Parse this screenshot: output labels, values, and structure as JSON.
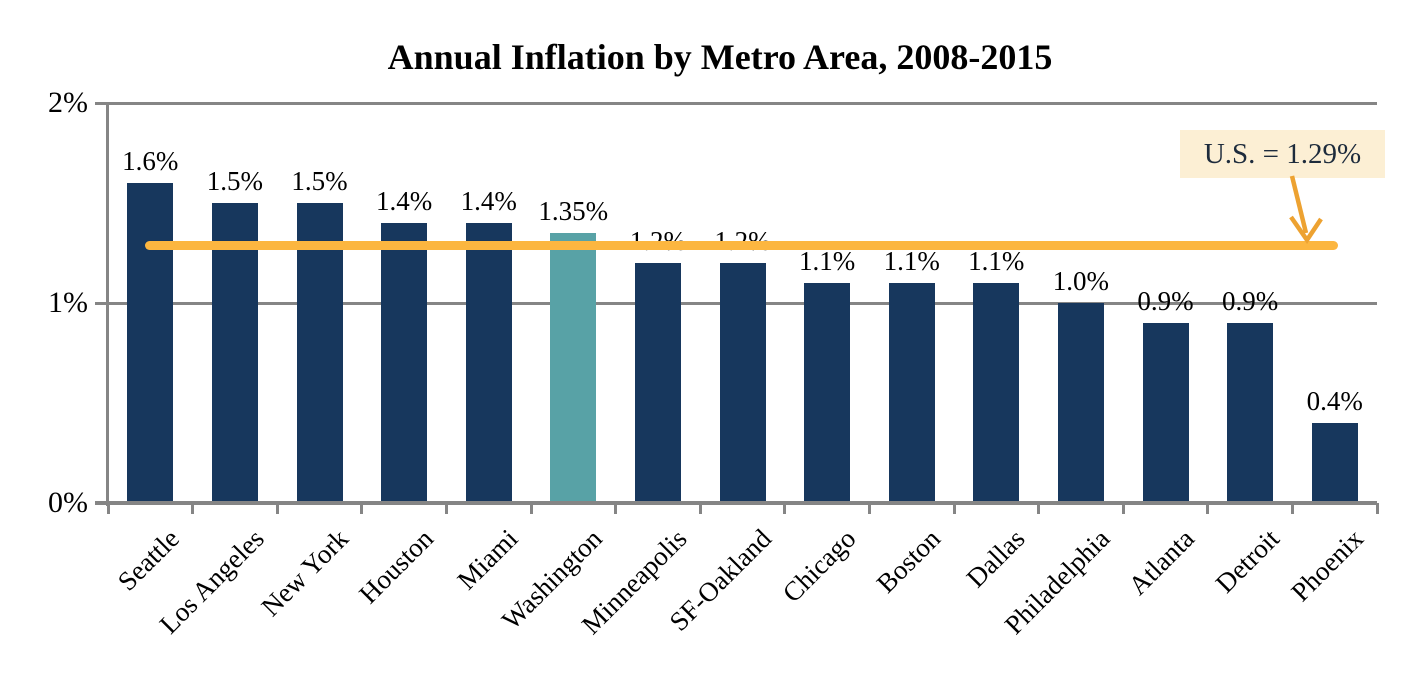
{
  "title": "Annual Inflation by Metro Area, 2008-2015",
  "chart_data": {
    "type": "bar",
    "title": "Annual Inflation by Metro Area, 2008-2015",
    "categories": [
      "Seattle",
      "Los Angeles",
      "New York",
      "Houston",
      "Miami",
      "Washington",
      "Minneapolis",
      "SF-Oakland",
      "Chicago",
      "Boston",
      "Dallas",
      "Philadelphia",
      "Atlanta",
      "Detroit",
      "Phoenix"
    ],
    "values": [
      1.6,
      1.5,
      1.5,
      1.4,
      1.4,
      1.35,
      1.2,
      1.2,
      1.1,
      1.1,
      1.1,
      1.0,
      0.9,
      0.9,
      0.4
    ],
    "bar_labels": [
      "1.6%",
      "1.5%",
      "1.5%",
      "1.4%",
      "1.4%",
      "1.35%",
      "1.2%",
      "1.2%",
      "1.1%",
      "1.1%",
      "1.1%",
      "1.0%",
      "0.9%",
      "0.9%",
      "0.4%"
    ],
    "highlight_category": "Washington",
    "highlight_index": 5,
    "xlabel": "",
    "ylabel": "",
    "y_axis": {
      "range": [
        0,
        2
      ],
      "ticks": [
        {
          "label": "0%",
          "value": 0
        },
        {
          "label": "1%",
          "value": 1
        },
        {
          "label": "2%",
          "value": 2
        }
      ]
    },
    "grid": "horizontal major gridlines on",
    "legend": "none",
    "reference_line": {
      "value": 1.29,
      "label": "U.S. = 1.29%"
    },
    "colors": {
      "bar": "#17375D",
      "highlight_bar": "#58A2A6",
      "reference_line": "#FCB640",
      "callout_arrow": "#EDA231",
      "callout_bg": "#FCEFD4",
      "callout_text": "#1D2B3C",
      "axis": "#858585",
      "label_text": "#000000"
    }
  }
}
